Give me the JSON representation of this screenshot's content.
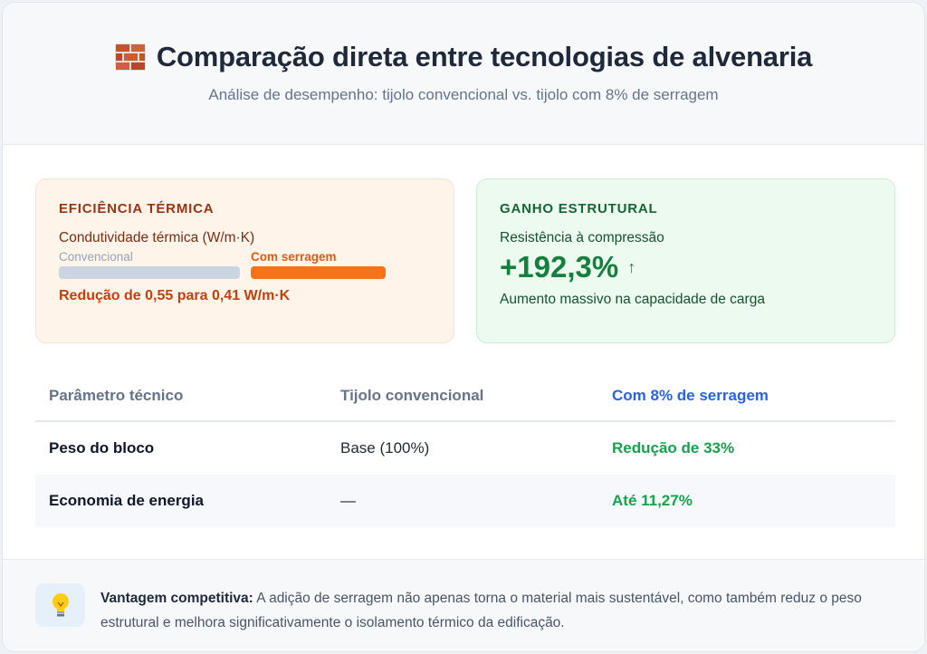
{
  "header": {
    "title": "Comparação direta entre tecnologias de alvenaria",
    "title_icon": "brick-icon",
    "subtitle": "Análise de desempenho: tijolo convencional vs. tijolo com 8% de serragem"
  },
  "thermal_panel": {
    "label": "EFICIÊNCIA TÉRMICA",
    "metric": "Condutividade térmica (W/m·K)",
    "legend_conventional": "Convencional",
    "legend_sawdust": "Com serragem",
    "conventional_value": 0.55,
    "sawdust_value": 0.41,
    "note": "Redução de 0,55 para 0,41 W/m·K",
    "accent_color": "#f97316"
  },
  "structural_panel": {
    "label": "GANHO ESTRUTURAL",
    "metric": "Resistência à compressão",
    "value": "+192,3%",
    "arrow_icon": "arrow-up-icon",
    "arrow_glyph": "↑",
    "note": "Aumento massivo na capacidade de carga",
    "accent_color": "#15803d"
  },
  "table": {
    "headers": [
      "Parâmetro técnico",
      "Tijolo convencional",
      "Com 8% de serragem"
    ],
    "rows": [
      [
        "Peso do bloco",
        "Base (100%)",
        "Redução de 33%"
      ],
      [
        "Economia de energia",
        "—",
        "Até 11,27%"
      ]
    ]
  },
  "footer": {
    "icon": "lightbulb-icon",
    "emoji": "💡",
    "strong": "Vantagem competitiva:",
    "text": " A adição de serragem não apenas torna o material mais sustentável, como também reduz o peso estrutural e melhora significativamente o isolamento térmico da edificação."
  }
}
